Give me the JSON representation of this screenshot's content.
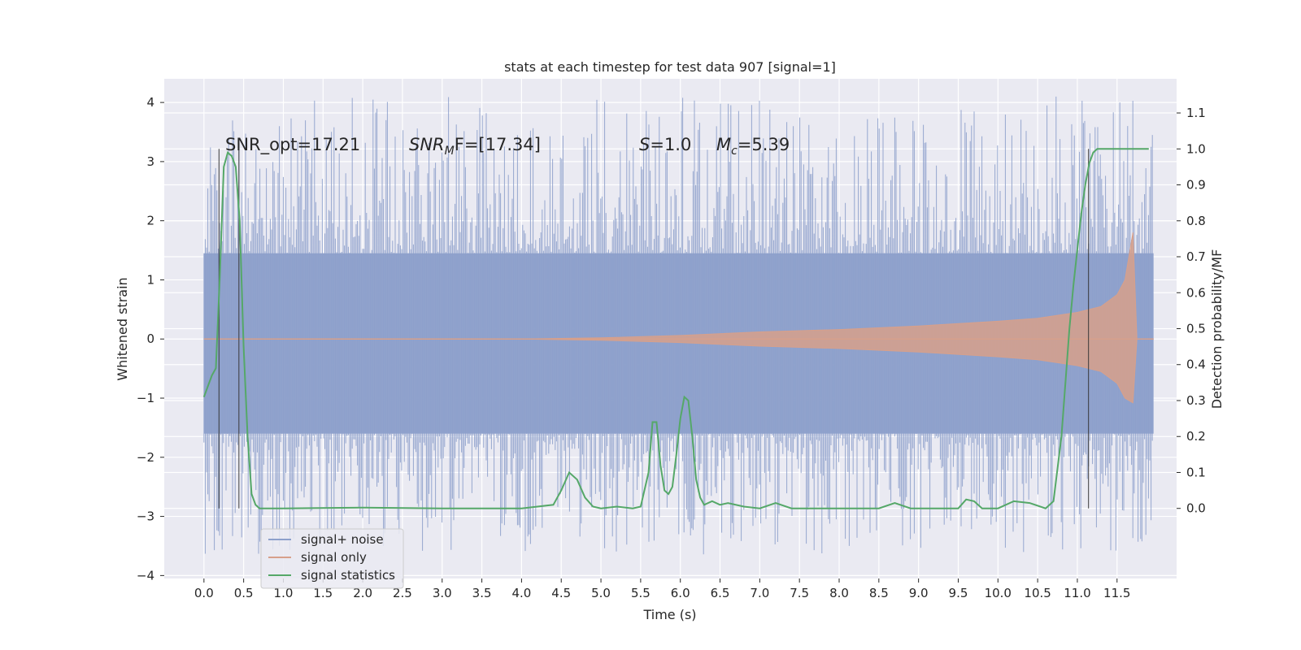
{
  "chart_data": {
    "type": "line",
    "title": "stats at each timestep for test data 907 [signal=1]",
    "xlabel": "Time (s)",
    "ylabel": "Whitened strain",
    "y2label": "Detection probability/MF",
    "xlim": [
      -0.5,
      12.25
    ],
    "ylim": [
      -4.05,
      4.4
    ],
    "y2lim": [
      -0.195,
      1.195
    ],
    "xticks": [
      0.0,
      0.5,
      1.0,
      1.5,
      2.0,
      2.5,
      3.0,
      3.5,
      4.0,
      4.5,
      5.0,
      5.5,
      6.0,
      6.5,
      7.0,
      7.5,
      8.0,
      8.5,
      9.0,
      9.5,
      10.0,
      10.5,
      11.0,
      11.5
    ],
    "xtick_labels": [
      "0.0",
      "0.5",
      "1.0",
      "1.5",
      "2.0",
      "2.5",
      "3.0",
      "3.5",
      "4.0",
      "4.5",
      "5.0",
      "5.5",
      "6.0",
      "6.5",
      "7.0",
      "7.5",
      "8.0",
      "8.5",
      "9.0",
      "9.5",
      "10.0",
      "10.5",
      "11.0",
      "11.5"
    ],
    "yticks": [
      -4,
      -3,
      -2,
      -1,
      0,
      1,
      2,
      3,
      4
    ],
    "ytick_labels": [
      "−4",
      "−3",
      "−2",
      "−1",
      "0",
      "1",
      "2",
      "3",
      "4"
    ],
    "y2ticks": [
      0.0,
      0.1,
      0.2,
      0.3,
      0.4,
      0.5,
      0.6,
      0.7,
      0.8,
      0.9,
      1.0,
      1.1
    ],
    "y2tick_labels": [
      "0.0",
      "0.1",
      "0.2",
      "0.3",
      "0.4",
      "0.5",
      "0.6",
      "0.7",
      "0.8",
      "0.9",
      "1.0",
      "1.1"
    ],
    "grid": true,
    "legend_position": "lower-left",
    "annotations": {
      "snr_opt": "SNR_opt=17.21",
      "snr_mf_main": "SNR",
      "snr_mf_sub": "M",
      "snr_mf_rest": "F=[17.34]",
      "s_main": "S",
      "s_rest": "=1.0",
      "mc_main": "M",
      "mc_sub": "c",
      "mc_rest": "=5.39"
    },
    "vertical_lines_x": [
      0.19,
      0.44,
      11.14
    ],
    "series": [
      {
        "name": "signal+ noise",
        "color": "#8da0cb",
        "axis": "left",
        "x_range": [
          0.0,
          11.96
        ],
        "band_core": [
          -1.6,
          1.45
        ],
        "band_extreme": [
          -3.65,
          4.1
        ]
      },
      {
        "name": "signal only",
        "color": "#d7a08b",
        "axis": "left",
        "envelope": {
          "x": [
            0.0,
            2.0,
            4.0,
            5.0,
            6.0,
            7.0,
            8.0,
            9.0,
            10.0,
            10.5,
            11.0,
            11.3,
            11.5,
            11.6,
            11.7,
            11.75,
            11.96
          ],
          "amp": [
            0.0,
            0.0,
            0.0,
            0.02,
            0.06,
            0.12,
            0.16,
            0.22,
            0.3,
            0.35,
            0.45,
            0.55,
            0.75,
            1.0,
            1.8,
            0.0,
            0.0
          ]
        }
      },
      {
        "name": "signal statistics",
        "color": "#55a868",
        "axis": "right",
        "x": [
          0.0,
          0.1,
          0.15,
          0.2,
          0.25,
          0.3,
          0.35,
          0.4,
          0.45,
          0.5,
          0.55,
          0.6,
          0.65,
          0.7,
          1.0,
          2.0,
          3.0,
          3.5,
          4.0,
          4.4,
          4.5,
          4.6,
          4.7,
          4.8,
          4.9,
          5.0,
          5.2,
          5.4,
          5.5,
          5.6,
          5.65,
          5.7,
          5.75,
          5.8,
          5.85,
          5.9,
          5.95,
          6.0,
          6.05,
          6.1,
          6.15,
          6.2,
          6.25,
          6.3,
          6.4,
          6.5,
          6.6,
          6.8,
          7.0,
          7.2,
          7.4,
          7.6,
          7.8,
          8.0,
          8.5,
          8.7,
          8.9,
          9.0,
          9.5,
          9.6,
          9.7,
          9.8,
          9.9,
          10.0,
          10.2,
          10.4,
          10.6,
          10.7,
          10.8,
          10.85,
          10.9,
          10.95,
          11.0,
          11.05,
          11.1,
          11.15,
          11.2,
          11.25,
          11.3,
          11.4,
          11.6,
          11.8,
          11.9
        ],
        "y": [
          0.31,
          0.37,
          0.39,
          0.65,
          0.95,
          0.99,
          0.98,
          0.95,
          0.8,
          0.45,
          0.2,
          0.04,
          0.01,
          0.0,
          0.0,
          0.002,
          0.0,
          0.0,
          0.0,
          0.01,
          0.05,
          0.1,
          0.08,
          0.03,
          0.005,
          0.0,
          0.005,
          0.0,
          0.005,
          0.1,
          0.24,
          0.24,
          0.12,
          0.05,
          0.04,
          0.06,
          0.15,
          0.25,
          0.31,
          0.3,
          0.2,
          0.08,
          0.03,
          0.01,
          0.02,
          0.01,
          0.015,
          0.005,
          0.0,
          0.015,
          0.0,
          0.0,
          0.0,
          0.0,
          0.0,
          0.015,
          0.0,
          0.0,
          0.0,
          0.025,
          0.02,
          0.0,
          0.0,
          0.0,
          0.02,
          0.015,
          0.0,
          0.02,
          0.2,
          0.35,
          0.5,
          0.62,
          0.72,
          0.82,
          0.9,
          0.96,
          0.99,
          1.0,
          1.0,
          1.0,
          1.0,
          1.0,
          1.0
        ]
      }
    ]
  }
}
